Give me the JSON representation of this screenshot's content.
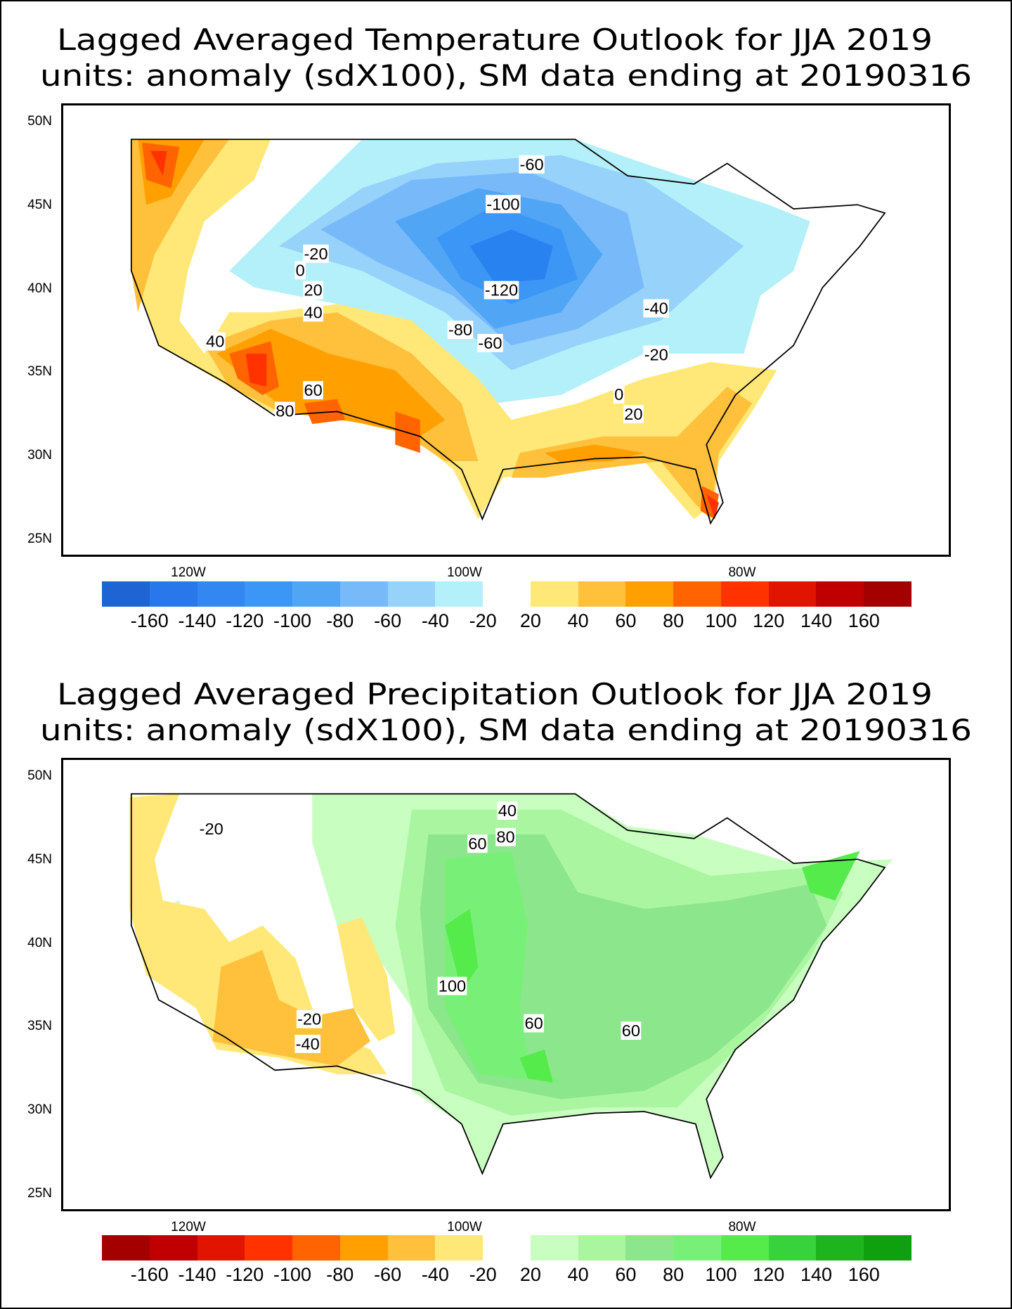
{
  "panels": [
    {
      "title_line1": "Lagged Averaged Temperature Outlook for JJA 2019",
      "title_line2": "units: anomaly (sdX100), SM data ending at 20190316",
      "variable": "temperature",
      "contour_labels": [
        "-60",
        "-100",
        "-20",
        "0",
        "20",
        "40",
        "-120",
        "-40",
        "-80",
        "-60",
        "40",
        "-20",
        "0",
        "20",
        "60",
        "80"
      ],
      "colorbar": {
        "labels": [
          "-160",
          "-140",
          "-120",
          "-100",
          "-80",
          "-60",
          "-40",
          "-20",
          "20",
          "40",
          "60",
          "80",
          "100",
          "120",
          "140",
          "160"
        ],
        "colors": [
          "#1e64d2",
          "#2878eb",
          "#3287f0",
          "#3c96f5",
          "#50a5f5",
          "#78b9fa",
          "#96d2fa",
          "#b4f0fa",
          "#ffffff",
          "#ffe878",
          "#ffc03c",
          "#ffa000",
          "#ff6400",
          "#ff3200",
          "#e11400",
          "#c00000",
          "#a50000"
        ]
      }
    },
    {
      "title_line1": "Lagged Averaged Precipitation Outlook for JJA 2019",
      "title_line2": "units: anomaly (sdX100), SM data ending at 20190316",
      "variable": "precipitation",
      "contour_labels": [
        "40",
        "-20",
        "60",
        "80",
        "100",
        "-20",
        "60",
        "60",
        "-40"
      ],
      "colorbar": {
        "labels": [
          "-160",
          "-140",
          "-120",
          "-100",
          "-80",
          "-60",
          "-40",
          "-20",
          "20",
          "40",
          "60",
          "80",
          "100",
          "120",
          "140",
          "160"
        ],
        "colors": [
          "#a50000",
          "#c00000",
          "#e11400",
          "#ff3200",
          "#ff6400",
          "#ffa000",
          "#ffc03c",
          "#ffe878",
          "#ffffff",
          "#c8ffc0",
          "#aaf5a0",
          "#8ce68c",
          "#78f078",
          "#55eb4b",
          "#37d23c",
          "#1eb41e",
          "#0fa00f"
        ]
      }
    }
  ],
  "axes": {
    "lat_labels": [
      "50N",
      "45N",
      "40N",
      "35N",
      "30N",
      "25N"
    ],
    "lon_labels": [
      "120W",
      "100W",
      "80W"
    ]
  }
}
